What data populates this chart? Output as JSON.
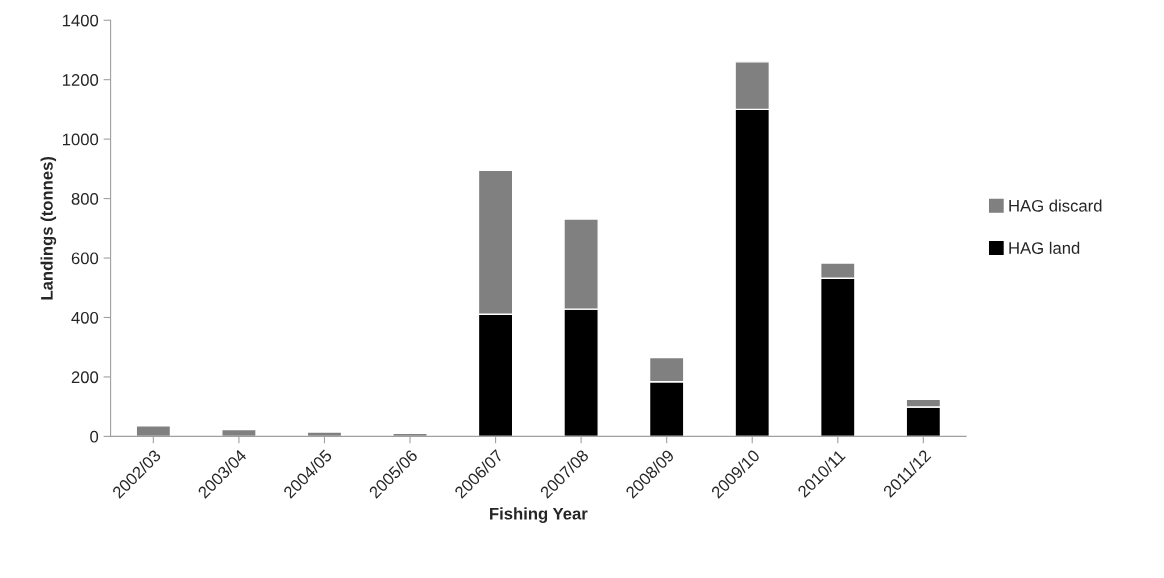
{
  "chart_data": {
    "type": "bar",
    "stacked": true,
    "xlabel": "Fishing Year",
    "ylabel": "Landings (tonnes)",
    "categories": [
      "2002/03",
      "2003/04",
      "2004/05",
      "2005/06",
      "2006/07",
      "2007/08",
      "2008/09",
      "2009/10",
      "2010/11",
      "2011/12"
    ],
    "series": [
      {
        "name": "HAG land",
        "color": "#000000",
        "values": [
          0,
          0,
          0,
          0,
          411,
          428,
          184,
          1100,
          532,
          99
        ]
      },
      {
        "name": "HAG discard",
        "color": "#808080",
        "values": [
          36,
          23,
          15,
          10,
          484,
          303,
          81,
          160,
          51,
          26
        ]
      }
    ],
    "ylim": [
      0,
      1400
    ],
    "yticks": [
      0,
      200,
      400,
      600,
      800,
      1000,
      1200,
      1400
    ],
    "grid": false,
    "legend": "right"
  }
}
